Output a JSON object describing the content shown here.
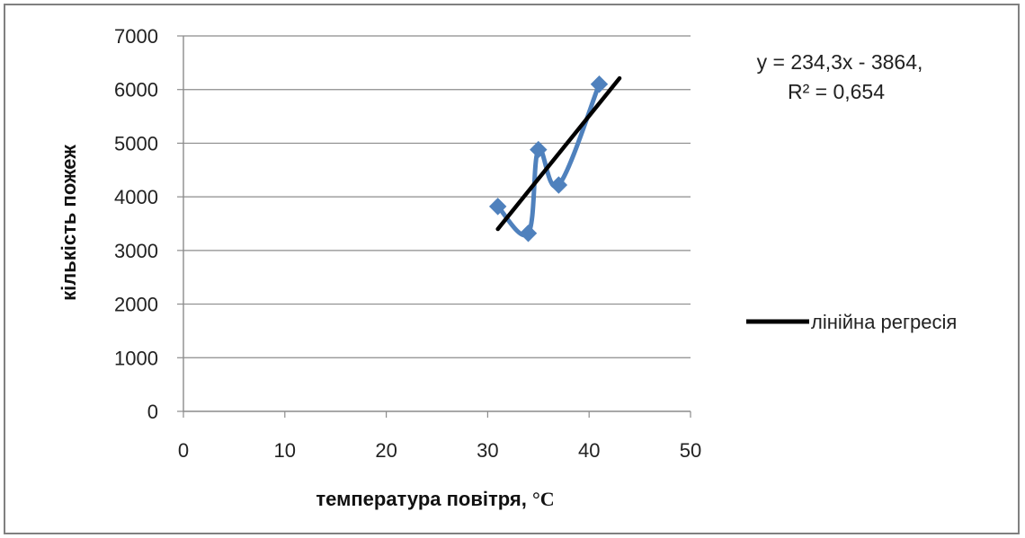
{
  "chart_data": {
    "type": "scatter",
    "xlabel": "температура повітря, ",
    "xlabel_unit": "°C",
    "ylabel": "кількість пожеж",
    "xlim": [
      0,
      50
    ],
    "ylim": [
      0,
      7000
    ],
    "x_ticks": [
      "0",
      "10",
      "20",
      "30",
      "40",
      "50"
    ],
    "y_ticks": [
      "0",
      "1000",
      "2000",
      "3000",
      "4000",
      "5000",
      "6000",
      "7000"
    ],
    "grid": "horizontal",
    "series": [
      {
        "style": "smoothed line with diamond markers",
        "color": "#4f81bd",
        "x": [
          31,
          34,
          35,
          37,
          41
        ],
        "y": [
          3820,
          3320,
          4880,
          4220,
          6100
        ]
      }
    ],
    "trendline": {
      "name": "лінійна регресія",
      "color": "#000000",
      "x": [
        31,
        43
      ],
      "y": [
        3399,
        6211
      ]
    },
    "equation_line1": "y = 234,3x - 3864,",
    "equation_line2": "R² = 0,654",
    "legend_position": "right"
  }
}
